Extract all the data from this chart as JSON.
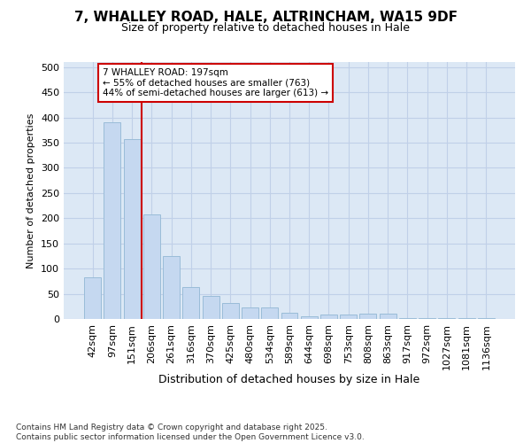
{
  "title_line1": "7, WHALLEY ROAD, HALE, ALTRINCHAM, WA15 9DF",
  "title_line2": "Size of property relative to detached houses in Hale",
  "xlabel": "Distribution of detached houses by size in Hale",
  "ylabel": "Number of detached properties",
  "categories": [
    "42sqm",
    "97sqm",
    "151sqm",
    "206sqm",
    "261sqm",
    "316sqm",
    "370sqm",
    "425sqm",
    "480sqm",
    "534sqm",
    "589sqm",
    "644sqm",
    "698sqm",
    "753sqm",
    "808sqm",
    "863sqm",
    "917sqm",
    "972sqm",
    "1027sqm",
    "1081sqm",
    "1136sqm"
  ],
  "values": [
    82,
    390,
    357,
    208,
    124,
    64,
    46,
    32,
    22,
    23,
    13,
    6,
    8,
    8,
    10,
    10,
    2,
    2,
    1,
    1,
    1
  ],
  "bar_color": "#c5d8f0",
  "bar_edge_color": "#9abcd8",
  "vline_color": "#cc0000",
  "annotation_line1": "7 WHALLEY ROAD: 197sqm",
  "annotation_line2": "← 55% of detached houses are smaller (763)",
  "annotation_line3": "44% of semi-detached houses are larger (613) →",
  "annotation_box_color": "#ffffff",
  "annotation_box_edge": "#cc0000",
  "footer_text": "Contains HM Land Registry data © Crown copyright and database right 2025.\nContains public sector information licensed under the Open Government Licence v3.0.",
  "bg_color": "#ffffff",
  "plot_bg_color": "#dce8f5",
  "grid_color": "#c0d0e8",
  "ylim": [
    0,
    510
  ],
  "yticks": [
    0,
    50,
    100,
    150,
    200,
    250,
    300,
    350,
    400,
    450,
    500
  ],
  "title_fontsize": 11,
  "subtitle_fontsize": 9,
  "ylabel_fontsize": 8,
  "xlabel_fontsize": 9,
  "tick_fontsize": 8,
  "footer_fontsize": 6.5
}
